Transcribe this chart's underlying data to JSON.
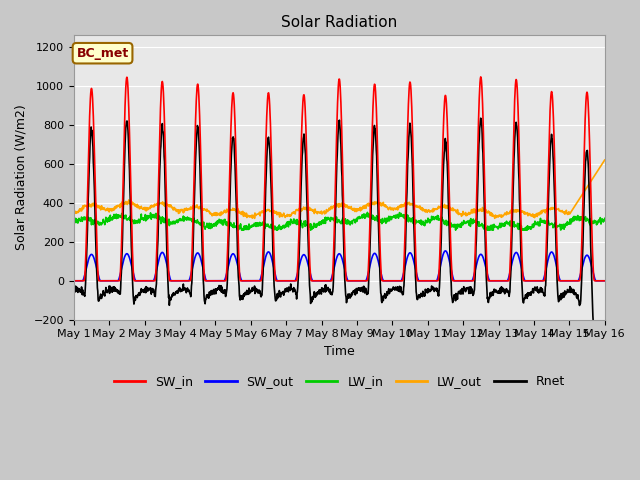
{
  "title": "Solar Radiation",
  "ylabel": "Solar Radiation (W/m2)",
  "xlabel": "Time",
  "ylim": [
    -200,
    1260
  ],
  "yticks": [
    -200,
    0,
    200,
    400,
    600,
    800,
    1000,
    1200
  ],
  "annotation_text": "BC_met",
  "annotation_bg": "#ffffcc",
  "annotation_border": "#996600",
  "fig_bg": "#c8c8c8",
  "plot_bg": "#e8e8e8",
  "n_days": 15,
  "series": {
    "SW_in": {
      "color": "red",
      "lw": 1.2
    },
    "SW_out": {
      "color": "blue",
      "lw": 1.2
    },
    "LW_in": {
      "color": "#00cc00",
      "lw": 1.2
    },
    "LW_out": {
      "color": "orange",
      "lw": 1.2
    },
    "Rnet": {
      "color": "black",
      "lw": 1.2
    }
  },
  "xtick_labels": [
    "May 1",
    "May 2",
    "May 3",
    "May 4",
    "May 5",
    "May 6",
    "May 7",
    "May 8",
    "May 9",
    "May 10",
    "May 11",
    "May 12",
    "May 13",
    "May 14",
    "May 15",
    "May 16"
  ],
  "grid_color": "#ffffff",
  "title_fontsize": 11,
  "label_fontsize": 9,
  "tick_fontsize": 8
}
